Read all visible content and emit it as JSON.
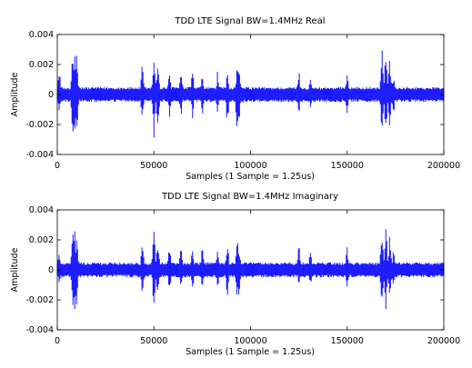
{
  "chart_data": [
    {
      "type": "line",
      "title": "TDD LTE Signal BW=1.4MHz Real",
      "xlabel": "Samples (1 Sample = 1.25us)",
      "ylabel": "Amplitude",
      "xlim": [
        0,
        200000
      ],
      "ylim": [
        -0.004,
        0.004
      ],
      "xticks": [
        0,
        50000,
        100000,
        150000,
        200000
      ],
      "xtick_labels": [
        "0",
        "50000",
        "100000",
        "150000",
        "200000"
      ],
      "yticks": [
        -0.004,
        -0.002,
        0,
        0.002,
        0.004
      ],
      "ytick_labels": [
        "-0.004",
        "-0.002",
        "0",
        "0.002",
        "0.004"
      ],
      "grid": false,
      "color": "#0000ff",
      "noise_amplitude": 0.0005,
      "bursts": [
        {
          "x": 1000,
          "pos": 0.002,
          "neg": -0.0012
        },
        {
          "x": 8000,
          "pos": 0.003,
          "neg": -0.003
        },
        {
          "x": 9000,
          "pos": 0.003,
          "neg": -0.0032
        },
        {
          "x": 10000,
          "pos": 0.0028,
          "neg": -0.0028
        },
        {
          "x": 44000,
          "pos": 0.0022,
          "neg": -0.002
        },
        {
          "x": 50000,
          "pos": 0.003,
          "neg": -0.003
        },
        {
          "x": 52000,
          "pos": 0.0024,
          "neg": -0.0026
        },
        {
          "x": 58000,
          "pos": 0.0019,
          "neg": -0.0016
        },
        {
          "x": 64000,
          "pos": 0.0018,
          "neg": -0.0018
        },
        {
          "x": 70000,
          "pos": 0.0018,
          "neg": -0.0017
        },
        {
          "x": 75000,
          "pos": 0.0015,
          "neg": -0.0016
        },
        {
          "x": 83000,
          "pos": 0.0017,
          "neg": -0.0014
        },
        {
          "x": 88000,
          "pos": 0.0018,
          "neg": -0.0022
        },
        {
          "x": 93000,
          "pos": 0.0022,
          "neg": -0.0026
        },
        {
          "x": 94000,
          "pos": 0.0021,
          "neg": -0.002
        },
        {
          "x": 125000,
          "pos": 0.0018,
          "neg": -0.0014
        },
        {
          "x": 131000,
          "pos": 0.0015,
          "neg": -0.0012
        },
        {
          "x": 150000,
          "pos": 0.0018,
          "neg": -0.0016
        },
        {
          "x": 168000,
          "pos": 0.0033,
          "neg": -0.003
        },
        {
          "x": 170000,
          "pos": 0.0032,
          "neg": -0.0028
        },
        {
          "x": 172000,
          "pos": 0.0026,
          "neg": -0.0024
        },
        {
          "x": 174000,
          "pos": 0.0015,
          "neg": -0.0014
        }
      ]
    },
    {
      "type": "line",
      "title": "TDD LTE Signal BW=1.4MHz Imaginary",
      "xlabel": "Samples (1 Sample = 1.25us)",
      "ylabel": "Amplitude",
      "xlim": [
        0,
        200000
      ],
      "ylim": [
        -0.004,
        0.004
      ],
      "xticks": [
        0,
        50000,
        100000,
        150000,
        200000
      ],
      "xtick_labels": [
        "0",
        "50000",
        "100000",
        "150000",
        "200000"
      ],
      "yticks": [
        -0.004,
        -0.002,
        0,
        0.002,
        0.004
      ],
      "ytick_labels": [
        "-0.004",
        "-0.002",
        "0",
        "0.002",
        "0.004"
      ],
      "grid": false,
      "color": "#0000ff",
      "noise_amplitude": 0.0005,
      "bursts": [
        {
          "x": 1000,
          "pos": 0.0015,
          "neg": -0.001
        },
        {
          "x": 8000,
          "pos": 0.0028,
          "neg": -0.0028
        },
        {
          "x": 9000,
          "pos": 0.003,
          "neg": -0.003
        },
        {
          "x": 10000,
          "pos": 0.0026,
          "neg": -0.0026
        },
        {
          "x": 44000,
          "pos": 0.0024,
          "neg": -0.002
        },
        {
          "x": 50000,
          "pos": 0.0028,
          "neg": -0.003
        },
        {
          "x": 52000,
          "pos": 0.0022,
          "neg": -0.0022
        },
        {
          "x": 58000,
          "pos": 0.002,
          "neg": -0.0018
        },
        {
          "x": 64000,
          "pos": 0.002,
          "neg": -0.0016
        },
        {
          "x": 70000,
          "pos": 0.0016,
          "neg": -0.0018
        },
        {
          "x": 75000,
          "pos": 0.0016,
          "neg": -0.0015
        },
        {
          "x": 83000,
          "pos": 0.0016,
          "neg": -0.0016
        },
        {
          "x": 88000,
          "pos": 0.0022,
          "neg": -0.002
        },
        {
          "x": 93000,
          "pos": 0.0024,
          "neg": -0.0022
        },
        {
          "x": 94000,
          "pos": 0.0018,
          "neg": -0.002
        },
        {
          "x": 125000,
          "pos": 0.0018,
          "neg": -0.0012
        },
        {
          "x": 131000,
          "pos": 0.0016,
          "neg": -0.0012
        },
        {
          "x": 150000,
          "pos": 0.0016,
          "neg": -0.0014
        },
        {
          "x": 168000,
          "pos": 0.003,
          "neg": -0.0032
        },
        {
          "x": 170000,
          "pos": 0.0032,
          "neg": -0.003
        },
        {
          "x": 172000,
          "pos": 0.0024,
          "neg": -0.0026
        },
        {
          "x": 174000,
          "pos": 0.0014,
          "neg": -0.0014
        }
      ]
    }
  ]
}
